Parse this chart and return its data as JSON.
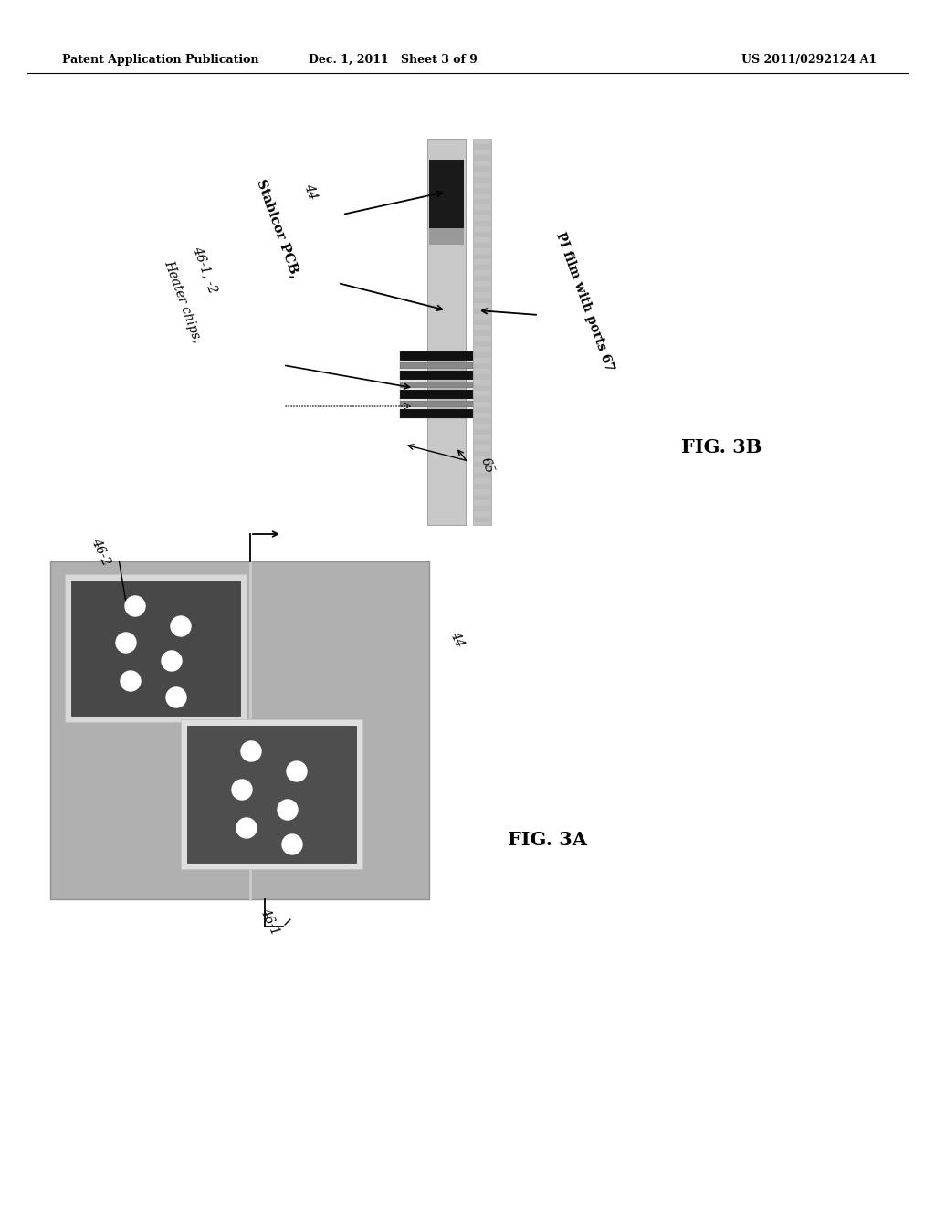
{
  "bg_color": "#ffffff",
  "header_left": "Patent Application Publication",
  "header_mid": "Dec. 1, 2011   Sheet 3 of 9",
  "header_right": "US 2011/0292124 A1",
  "fig3a_label": "FIG. 3A",
  "fig3b_label": "FIG. 3B",
  "label_44_a": "44",
  "label_46_2": "46-2",
  "label_46_1": "46-1",
  "label_44_b": "44",
  "label_heater": "Heater chips,",
  "label_heater2": "46-1, -2",
  "label_stablcor": "Stablcor PCB,",
  "label_pi": "PI film with ports 67",
  "label_65": "65",
  "pcb_gray": "#c0c0c0",
  "pcb_dark": "#2a2a2a",
  "pcb_mid": "#888888",
  "chip_dark": "#111111",
  "chip_light": "#555555",
  "board_gray": "#aaaaaa",
  "chip_area_dark": "#4a4a4a",
  "chip_border": "#d8d8d8"
}
